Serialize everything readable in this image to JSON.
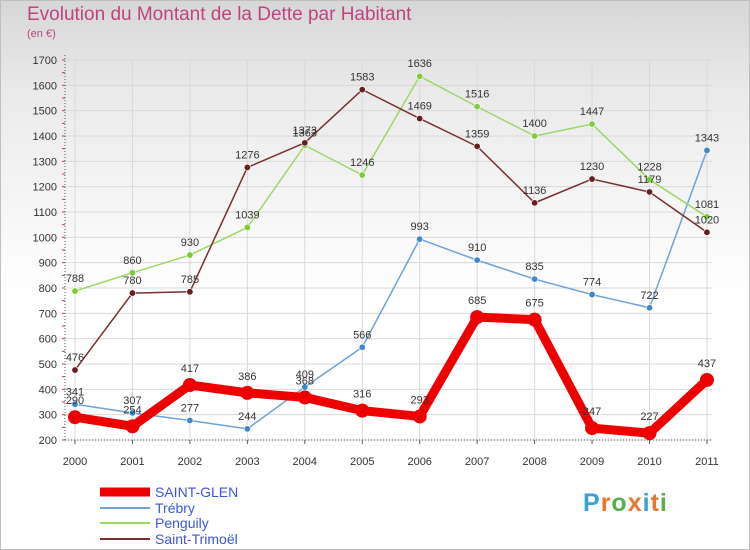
{
  "title": "Evolution du Montant de la Dette par Habitant",
  "unit": "(en €)",
  "logo": {
    "letters": [
      "P",
      "r",
      "o",
      "x",
      "i",
      "t",
      "i"
    ],
    "colors": [
      "#3aa0d8",
      "#e8762c",
      "#55b04a",
      "#e8762c",
      "#3aa0d8",
      "#e8762c",
      "#55b04a"
    ]
  },
  "chart_data": {
    "type": "line",
    "title": "Evolution du Montant de la Dette par Habitant",
    "ylabel": "(en €)",
    "xlabel": "",
    "ylim": [
      200,
      1700
    ],
    "yticks": [
      200,
      300,
      400,
      500,
      600,
      700,
      800,
      900,
      1000,
      1100,
      1200,
      1300,
      1400,
      1500,
      1600,
      1700
    ],
    "categories": [
      "2000",
      "2001",
      "2002",
      "2003",
      "2004",
      "2005",
      "2006",
      "2007",
      "2008",
      "2009",
      "2010",
      "2011"
    ],
    "legend_position": "bottom-left",
    "series": [
      {
        "name": "SAINT-GLEN",
        "color": "#ee0000",
        "point": "#ee0000",
        "thick": true,
        "values": [
          290,
          254,
          417,
          386,
          368,
          316,
          293,
          685,
          675,
          247,
          227,
          437
        ]
      },
      {
        "name": "Trébry",
        "color": "#6fa3d6",
        "point": "#3e87cc",
        "thick": false,
        "values": [
          341,
          307,
          277,
          244,
          409,
          566,
          993,
          910,
          835,
          774,
          722,
          1343
        ]
      },
      {
        "name": "Penguily",
        "color": "#99d966",
        "point": "#7dcc3a",
        "thick": false,
        "values": [
          788,
          860,
          930,
          1039,
          1363,
          1246,
          1636,
          1516,
          1400,
          1447,
          1228,
          1081
        ]
      },
      {
        "name": "Saint-Trimoël",
        "color": "#7a2e2e",
        "point": "#661f1f",
        "thick": false,
        "values": [
          476,
          780,
          785,
          1276,
          1373,
          1583,
          1469,
          1359,
          1136,
          1230,
          1179,
          1020
        ]
      }
    ]
  }
}
